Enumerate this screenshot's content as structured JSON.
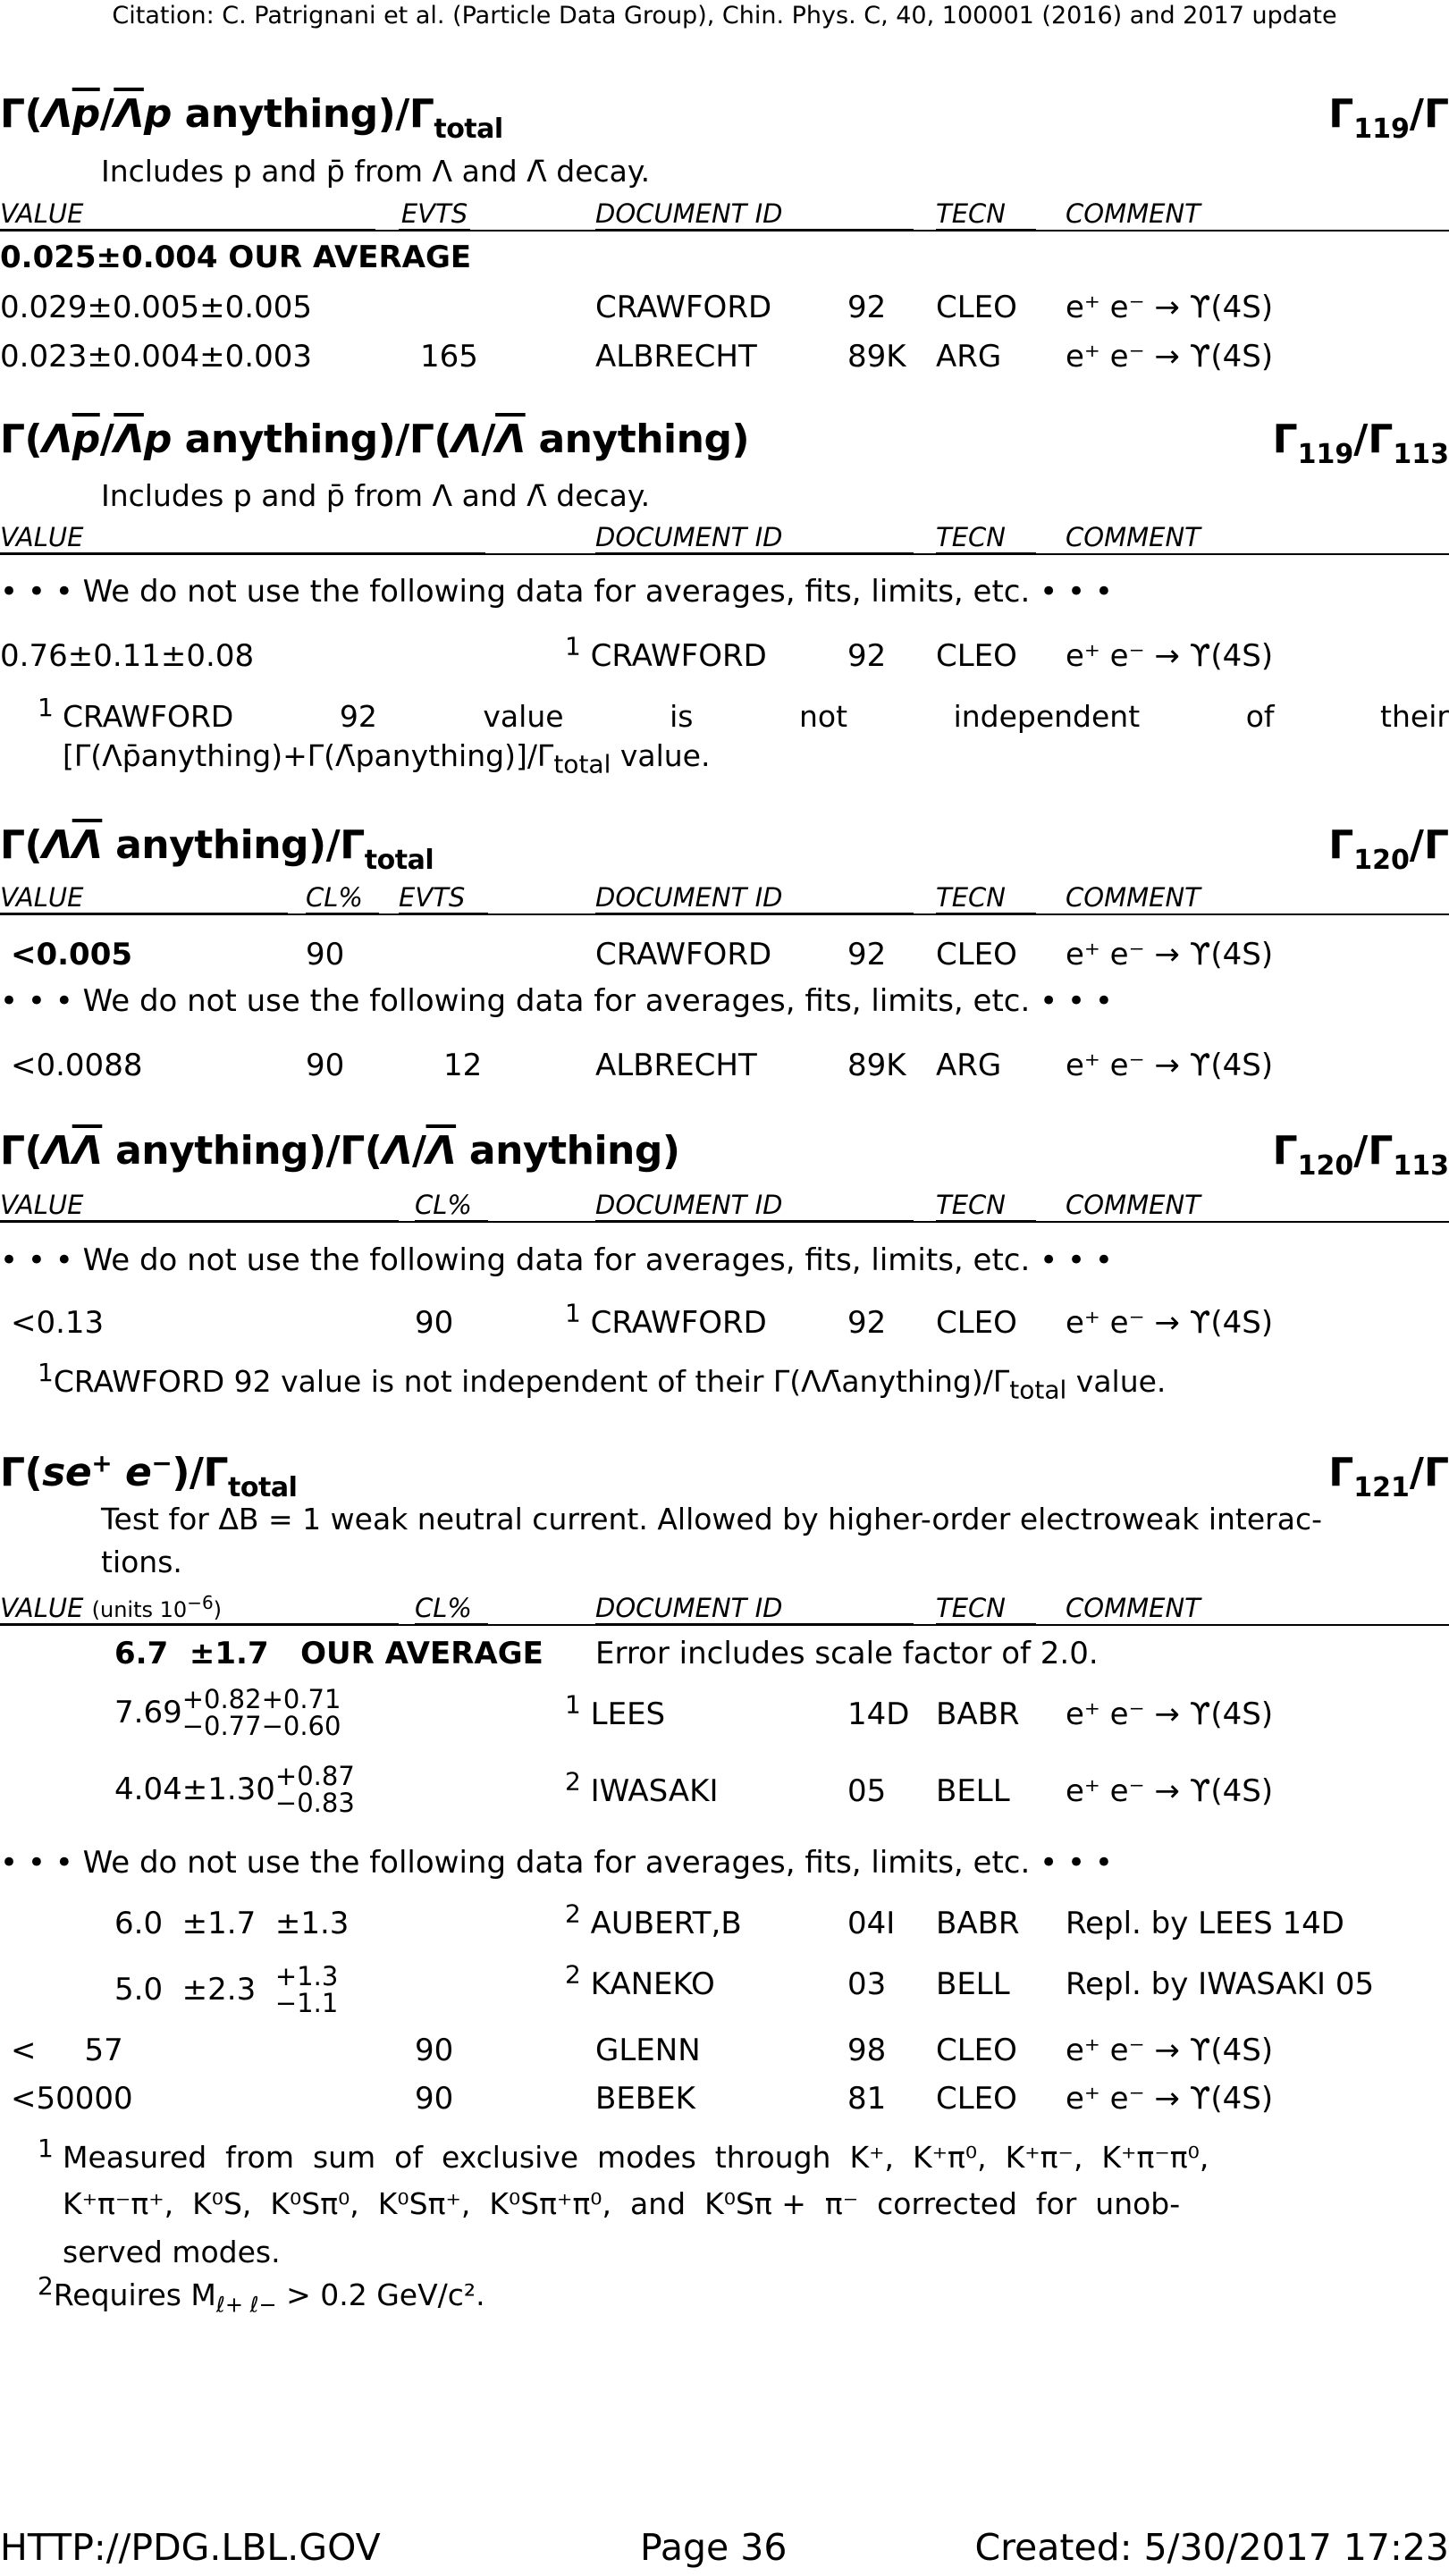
{
  "citation": "Citation: C. Patrignani et al. (Particle Data Group), Chin. Phys. C, 40, 100001 (2016) and 2017 update",
  "col_headers": {
    "value": "VALUE",
    "evts": "EVTS",
    "cl": "CL%",
    "docid": "DOCUMENT ID",
    "tecn": "TECN",
    "comment": "COMMENT",
    "units": "(units 10",
    "units_exp": "−6",
    "units_close": ")"
  },
  "nouse": "• • • We do not use the following data for averages, fits, limits, etc. • • •",
  "ee": "e⁺ e⁻ → ϒ(4S)",
  "sections": {
    "s1": {
      "gref_base": "Γ",
      "gref_sub": "119",
      "gref_tail": "/Γ",
      "note": "Includes p and p̄ from Λ and Λ̄ decay.",
      "avg_value": "0.025±0.004",
      "avg_label": "OUR AVERAGE",
      "rows": [
        {
          "value": "0.029±0.005±0.005",
          "evts": "",
          "doc": "CRAWFORD",
          "year": "92",
          "tecn": "CLEO",
          "comment": "e⁺ e⁻ → ϒ(4S)"
        },
        {
          "value": "0.023±0.004±0.003",
          "evts": "165",
          "doc": "ALBRECHT",
          "year": "89K",
          "tecn": "ARG",
          "comment": "e⁺ e⁻ → ϒ(4S)"
        }
      ]
    },
    "s2": {
      "gref_base": "Γ",
      "gref_sub": "119",
      "gref_mid": "/Γ",
      "gref_sub2": "113",
      "note": "Includes p and p̄ from Λ and Λ̄ decay.",
      "row": {
        "value": "0.76±0.11±0.08",
        "fn": "1",
        "doc": "CRAWFORD",
        "year": "92",
        "tecn": "CLEO",
        "comment": "e⁺ e⁻ → ϒ(4S)"
      },
      "footnote": {
        "num": "1",
        "line1": [
          "CRAWFORD",
          "92",
          "value",
          "is",
          "not",
          "independent",
          "of",
          "their"
        ],
        "line2": "[Γ(Λp̄anything)+Γ(Λ̄panything)]/Γ",
        "line2_sub": "total",
        "line2_tail": " value."
      }
    },
    "s3": {
      "gref_base": "Γ",
      "gref_sub": "120",
      "gref_tail": "/Γ",
      "rows": [
        {
          "value": "<0.005",
          "cl": "90",
          "evts": "",
          "doc": "CRAWFORD",
          "year": "92",
          "tecn": "CLEO",
          "comment": "e⁺ e⁻ → ϒ(4S)"
        },
        {
          "value": "<0.0088",
          "cl": "90",
          "evts": "12",
          "doc": "ALBRECHT",
          "year": "89K",
          "tecn": "ARG",
          "comment": "e⁺ e⁻ → ϒ(4S)"
        }
      ]
    },
    "s4": {
      "gref_base": "Γ",
      "gref_sub": "120",
      "gref_mid": "/Γ",
      "gref_sub2": "113",
      "row": {
        "value": "<0.13",
        "cl": "90",
        "fn": "1",
        "doc": "CRAWFORD",
        "year": "92",
        "tecn": "CLEO",
        "comment": "e⁺ e⁻ → ϒ(4S)"
      },
      "footnote": {
        "num": "1",
        "text": "CRAWFORD 92 value is not independent of their Γ(ΛΛ̄anything)/Γ",
        "sub": "total",
        "tail": " value."
      }
    },
    "s5": {
      "gref_base": "Γ",
      "gref_sub": "121",
      "gref_tail": "/Γ",
      "note1": "Test for ΔB = 1 weak neutral current.  Allowed by higher-order electroweak interac-",
      "note2": "tions.",
      "avg_value": "6.7  ±1.7",
      "avg_label": "OUR AVERAGE",
      "avg_note": "Error includes scale factor of 2.0.",
      "rows": [
        {
          "central": "7.69",
          "up1": "+0.82",
          "dn1": "−0.77",
          "up2": "+0.71",
          "dn2": "−0.60",
          "fn": "1",
          "doc": "LEES",
          "year": "14D",
          "tecn": "BABR",
          "comment": "e⁺ e⁻ → ϒ(4S)"
        },
        {
          "central": "4.04±1.30",
          "up2": "+0.87",
          "dn2": "−0.83",
          "fn": "2",
          "doc": "IWASAKI",
          "year": "05",
          "tecn": "BELL",
          "comment": "e⁺ e⁻ → ϒ(4S)"
        }
      ],
      "unused": [
        {
          "value": "6.0  ±1.7  ±1.3",
          "fn": "2",
          "doc": "AUBERT,B",
          "year": "04I",
          "tecn": "BABR",
          "comment": "Repl.  by LEES 14D"
        },
        {
          "central": "5.0  ±2.3",
          "up": "+1.3",
          "dn": "−1.1",
          "fn": "2",
          "doc": "KANEKO",
          "year": "03",
          "tecn": "BELL",
          "comment": "Repl.  by IWASAKI 05"
        },
        {
          "value": "<     57",
          "cl": "90",
          "doc": "GLENN",
          "year": "98",
          "tecn": "CLEO",
          "comment": "e⁺ e⁻ → ϒ(4S)"
        },
        {
          "value": "<50000",
          "cl": "90",
          "doc": "BEBEK",
          "year": "81",
          "tecn": "CLEO",
          "comment": "e⁺ e⁻ → ϒ(4S)"
        }
      ],
      "footnotes": [
        {
          "num": "1",
          "line1": "Measured  from  sum  of  exclusive  modes  through  K⁺,  K⁺π⁰,  K⁺π⁻,  K⁺π⁻π⁰,",
          "line2": "K⁺π⁻π⁺,  K⁰S,  K⁰Sπ⁰,  K⁰Sπ⁺,  K⁰Sπ⁺π⁰,  and  K⁰Sπ +  π⁻  corrected  for  unob-",
          "line3": "served modes."
        },
        {
          "num": "2",
          "text": "Requires M",
          "sub": "ℓ+ ℓ−",
          "tail": " > 0.2 GeV/c²."
        }
      ]
    }
  },
  "footer": {
    "left": "HTTP://PDG.LBL.GOV",
    "center": "Page 36",
    "right": "Created: 5/30/2017 17:23"
  }
}
